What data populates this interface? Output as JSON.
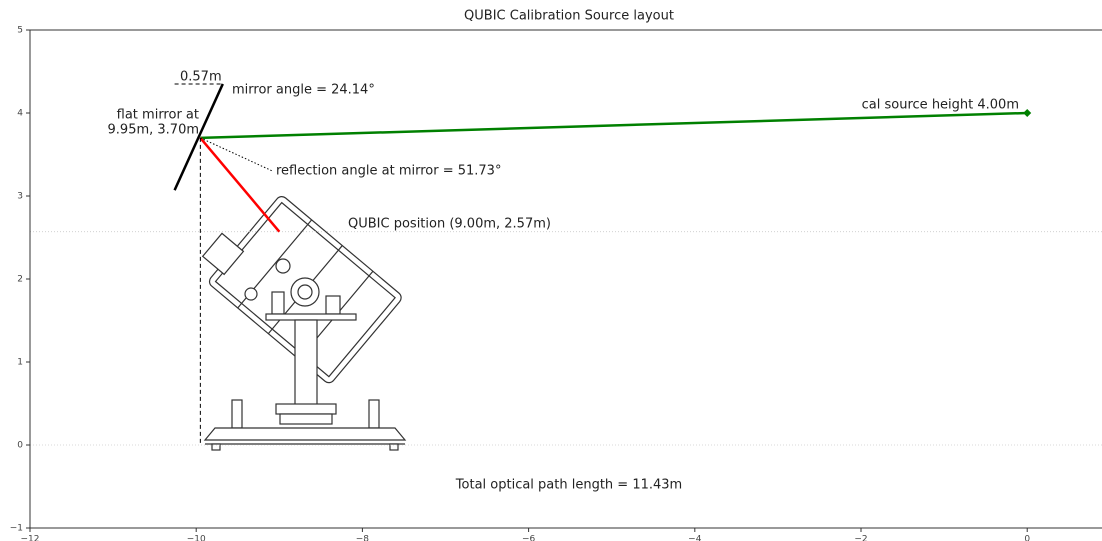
{
  "chart_data": {
    "type": "line",
    "title": "QUBIC Calibration Source layout",
    "xlim": [
      -12,
      0.9
    ],
    "ylim": [
      -1,
      5
    ],
    "xticks": [
      {
        "value": -12,
        "label": "−12"
      },
      {
        "value": -10,
        "label": "−10"
      },
      {
        "value": -8,
        "label": "−8"
      },
      {
        "value": -6,
        "label": "−6"
      },
      {
        "value": -4,
        "label": "−4"
      },
      {
        "value": -2,
        "label": "−2"
      },
      0
    ],
    "yticks": [
      {
        "value": -1,
        "label": "−1"
      },
      0,
      1,
      2,
      3,
      4,
      5
    ],
    "hlines": [
      2.57,
      0
    ],
    "series": [
      {
        "color": "green",
        "linestyle": "solid",
        "width": 2.5,
        "x": [
          -9.95,
          0
        ],
        "values": [
          3.7,
          4.0
        ]
      },
      {
        "color": "green",
        "linestyle": "none",
        "marker": "diamond",
        "x": [
          0
        ],
        "values": [
          4.0
        ]
      },
      {
        "color": "red",
        "linestyle": "solid",
        "width": 2.5,
        "x": [
          -9.95,
          -9.0
        ],
        "values": [
          3.7,
          2.57
        ]
      },
      {
        "color": "black",
        "linestyle": "solid",
        "width": 2.5,
        "x": [
          -10.26,
          -9.68
        ],
        "values": [
          3.07,
          4.35
        ]
      },
      {
        "color": "black",
        "linestyle": "dashed",
        "width": 1,
        "x": [
          -9.95,
          -9.95
        ],
        "values": [
          3.7,
          0
        ]
      },
      {
        "color": "black",
        "linestyle": "dashed",
        "width": 1,
        "x": [
          -10.26,
          -9.68
        ],
        "values": [
          4.35,
          4.35
        ]
      },
      {
        "color": "black",
        "linestyle": "dotted",
        "width": 1,
        "x": [
          -9.95,
          -9.08
        ],
        "values": [
          3.7,
          3.3
        ]
      }
    ],
    "annotations": {
      "width": "0.57m",
      "mirror_angle": "mirror angle = 24.14°",
      "mirror_line1": "flat mirror at",
      "mirror_line2": "9.95m, 3.70m",
      "reflection": "reflection angle at mirror = 51.73°",
      "qubic": "QUBIC position (9.00m, 2.57m)",
      "source": "cal source height 4.00m",
      "path": "Total optical path length = 11.43m"
    }
  }
}
